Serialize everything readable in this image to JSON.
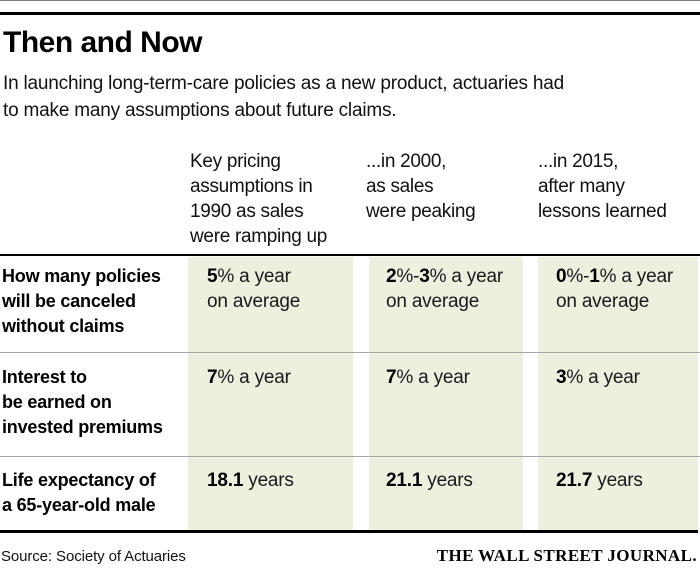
{
  "page": {
    "title": "Then and Now",
    "subtitle": "In launching long-term-care policies as a new product, actuaries had\nto make many assumptions about future claims.",
    "source": "Source: Society of Actuaries",
    "brand": "THE WALL STREET JOURNAL."
  },
  "colors": {
    "band_background": "#edefdf",
    "rule_black": "#000000",
    "row_separator_gray": "#a8a8a8",
    "top_hairline_gray": "#7d7d7d"
  },
  "table": {
    "column_headers": [
      "Key pricing\nassumptions in\n1990 as sales\nwere ramping up",
      "...in 2000,\nas sales\nwere peaking",
      "...in 2015,\nafter many\nlessons learned"
    ],
    "rows": [
      {
        "label": "How many policies\nwill be canceled\nwithout claims",
        "cells": [
          {
            "segments": [
              {
                "t": "5",
                "b": true
              },
              {
                "t": "% a year",
                "b": false
              }
            ],
            "line2": "on average"
          },
          {
            "segments": [
              {
                "t": "2",
                "b": true
              },
              {
                "t": "%-",
                "b": false
              },
              {
                "t": "3",
                "b": true
              },
              {
                "t": "% a year",
                "b": false
              }
            ],
            "line2": "on average"
          },
          {
            "segments": [
              {
                "t": "0",
                "b": true
              },
              {
                "t": "%-",
                "b": false
              },
              {
                "t": "1",
                "b": true
              },
              {
                "t": "% a year",
                "b": false
              }
            ],
            "line2": "on average"
          }
        ]
      },
      {
        "label": "Interest to\nbe earned on\ninvested premiums",
        "cells": [
          {
            "segments": [
              {
                "t": "7",
                "b": true
              },
              {
                "t": "% a year",
                "b": false
              }
            ]
          },
          {
            "segments": [
              {
                "t": "7",
                "b": true
              },
              {
                "t": "% a year",
                "b": false
              }
            ]
          },
          {
            "segments": [
              {
                "t": "3",
                "b": true
              },
              {
                "t": "% a year",
                "b": false
              }
            ]
          }
        ]
      },
      {
        "label": "Life expectancy of\na 65-year-old male",
        "cells": [
          {
            "segments": [
              {
                "t": "18.1",
                "b": true
              },
              {
                "t": " years",
                "b": false
              }
            ]
          },
          {
            "segments": [
              {
                "t": "21.1",
                "b": true
              },
              {
                "t": " years",
                "b": false
              }
            ]
          },
          {
            "segments": [
              {
                "t": "21.7",
                "b": true
              },
              {
                "t": " years",
                "b": false
              }
            ]
          }
        ]
      }
    ]
  },
  "chart_data": {
    "type": "table",
    "title": "Then and Now",
    "subtitle": "In launching long-term-care policies as a new product, actuaries had to make many assumptions about future claims.",
    "columns": [
      "Key pricing assumptions in 1990 as sales were ramping up",
      "...in 2000, as sales were peaking",
      "...in 2015, after many lessons learned"
    ],
    "rows": [
      {
        "label": "How many policies will be canceled without claims",
        "values": [
          "5% a year on average",
          "2%-3% a year on average",
          "0%-1% a year on average"
        ]
      },
      {
        "label": "Interest to be earned on invested premiums",
        "values": [
          "7% a year",
          "7% a year",
          "3% a year"
        ]
      },
      {
        "label": "Life expectancy of a 65-year-old male",
        "values": [
          "18.1 years",
          "21.1 years",
          "21.7 years"
        ]
      }
    ],
    "source": "Source: Society of Actuaries",
    "credit": "THE WALL STREET JOURNAL."
  }
}
